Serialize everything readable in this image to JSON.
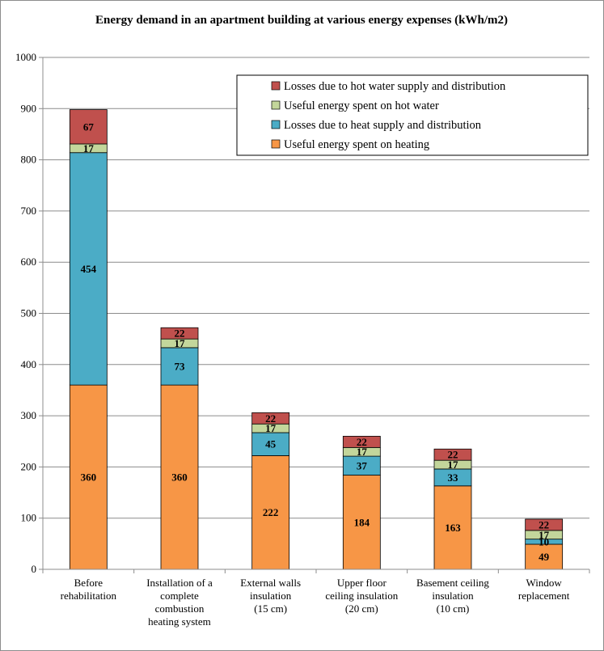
{
  "chart_data": {
    "type": "bar",
    "stacked": true,
    "title": "Energy demand in an apartment building at various energy expenses (kWh/m2)",
    "xlabel": "",
    "ylabel": "",
    "ylim": [
      0,
      1000
    ],
    "yticks": [
      0,
      100,
      200,
      300,
      400,
      500,
      600,
      700,
      800,
      900,
      1000
    ],
    "grid": true,
    "legend_position": "top-right",
    "categories": [
      [
        "Before",
        "rehabilitation"
      ],
      [
        "Installation of a",
        "complete",
        "combustion",
        "heating system"
      ],
      [
        "External walls",
        "insulation",
        "(15 cm)"
      ],
      [
        "Upper floor",
        "ceiling insulation",
        "(20 cm)"
      ],
      [
        "Basement ceiling",
        "insulation",
        "(10 cm)"
      ],
      [
        "Window",
        "replacement"
      ]
    ],
    "series": [
      {
        "name": "Useful energy spent on heating",
        "color": "#f79646",
        "values": [
          360,
          360,
          222,
          184,
          163,
          49
        ]
      },
      {
        "name": "Losses due to heat supply and distribution",
        "color": "#4bacc6",
        "values": [
          454,
          73,
          45,
          37,
          33,
          10
        ]
      },
      {
        "name": "Useful energy spent on hot water",
        "color": "#c3d69b",
        "values": [
          17,
          17,
          17,
          17,
          17,
          17
        ]
      },
      {
        "name": "Losses due to hot water supply and distribution",
        "color": "#c0504d",
        "values": [
          67,
          22,
          22,
          22,
          22,
          22
        ]
      }
    ],
    "legend_order": [
      3,
      2,
      1,
      0
    ]
  }
}
